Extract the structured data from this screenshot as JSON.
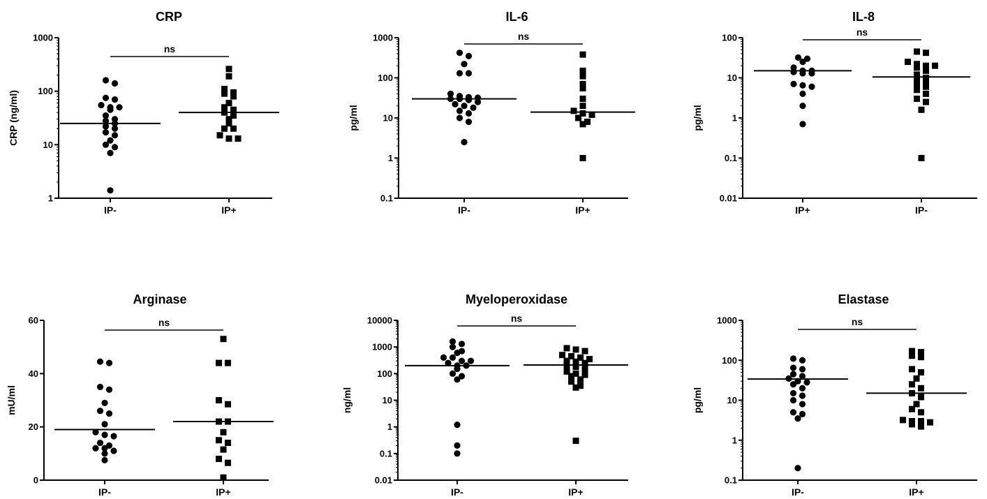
{
  "chart_data": [
    {
      "type": "scatter",
      "title": "CRP",
      "ylabel": "CRP (ng/ml)",
      "yscale": "log",
      "ylim": [
        1,
        1000
      ],
      "yticks": [
        1,
        10,
        100,
        1000
      ],
      "ytick_labels": [
        "1",
        "10",
        "100",
        "1000"
      ],
      "categories": [
        "IP-",
        "IP+"
      ],
      "significance": "ns",
      "series": [
        {
          "marker": "circle",
          "median": 25,
          "values": [
            160,
            140,
            75,
            70,
            55,
            50,
            50,
            45,
            35,
            30,
            28,
            25,
            22,
            20,
            17,
            15,
            12,
            10,
            9,
            7,
            1.4
          ]
        },
        {
          "marker": "square",
          "median": 40,
          "values": [
            260,
            190,
            110,
            95,
            90,
            80,
            60,
            50,
            45,
            40,
            35,
            30,
            25,
            20,
            20,
            15,
            13,
            13
          ]
        }
      ]
    },
    {
      "type": "scatter",
      "title": "IL-6",
      "ylabel": "pg/ml",
      "yscale": "log",
      "ylim": [
        0.1,
        1000
      ],
      "yticks": [
        0.1,
        1,
        10,
        100,
        1000
      ],
      "ytick_labels": [
        "0.1",
        "1",
        "10",
        "100",
        "1000"
      ],
      "categories": [
        "IP-",
        "IP+"
      ],
      "significance": "ns",
      "series": [
        {
          "marker": "circle",
          "median": 30,
          "values": [
            420,
            350,
            220,
            130,
            130,
            40,
            35,
            33,
            32,
            30,
            30,
            28,
            25,
            22,
            20,
            18,
            15,
            13,
            10,
            8,
            2.5
          ]
        },
        {
          "marker": "square",
          "median": 14,
          "values": [
            380,
            150,
            110,
            70,
            55,
            30,
            20,
            15,
            13,
            12,
            10,
            8,
            7,
            1
          ]
        }
      ]
    },
    {
      "type": "scatter",
      "title": "IL-8",
      "ylabel": "pg/ml",
      "yscale": "log",
      "ylim": [
        0.01,
        100
      ],
      "yticks": [
        0.01,
        0.1,
        1,
        10,
        100
      ],
      "ytick_labels": [
        "0.01",
        "0.1",
        "1",
        "10",
        "100"
      ],
      "categories": [
        "IP+",
        "IP-"
      ],
      "significance": "ns",
      "series": [
        {
          "marker": "circle",
          "median": 15,
          "values": [
            32,
            30,
            25,
            18,
            15,
            15,
            14,
            13,
            13,
            7,
            6.5,
            6,
            4,
            2,
            0.7
          ]
        },
        {
          "marker": "square",
          "median": 10.5,
          "values": [
            45,
            42,
            25,
            22,
            20,
            20,
            18,
            15,
            12,
            10,
            9,
            8,
            7,
            6,
            5,
            4,
            3,
            2.5,
            1.6,
            0.1
          ]
        }
      ]
    },
    {
      "type": "scatter",
      "title": "Arginase",
      "ylabel": "mU/ml",
      "yscale": "linear",
      "ylim": [
        0,
        60
      ],
      "yticks": [
        0,
        20,
        40,
        60
      ],
      "ytick_labels": [
        "0",
        "20",
        "40",
        "60"
      ],
      "categories": [
        "IP-",
        "IP+"
      ],
      "significance": "ns",
      "series": [
        {
          "marker": "circle",
          "median": 19,
          "values": [
            44.5,
            44,
            35,
            34,
            29,
            26,
            25,
            21,
            18,
            17,
            16.5,
            14,
            13,
            12,
            12,
            11,
            10,
            7.5
          ]
        },
        {
          "marker": "square",
          "median": 22,
          "values": [
            53,
            44,
            44,
            30,
            28.5,
            22,
            22,
            18,
            15,
            14,
            11.5,
            8,
            6.5,
            1
          ]
        }
      ]
    },
    {
      "type": "scatter",
      "title": "Myeloperoxidase",
      "ylabel": "ng/ml",
      "yscale": "log",
      "ylim": [
        0.01,
        10000
      ],
      "yticks": [
        0.01,
        0.1,
        1,
        10,
        100,
        1000,
        10000
      ],
      "ytick_labels": [
        "0.01",
        "0.1",
        "1",
        "10",
        "100",
        "1000",
        "10000"
      ],
      "categories": [
        "IP-",
        "IP+"
      ],
      "significance": "ns",
      "series": [
        {
          "marker": "circle",
          "median": 200,
          "values": [
            1600,
            1300,
            1000,
            700,
            600,
            400,
            400,
            300,
            300,
            250,
            200,
            200,
            150,
            100,
            80,
            60,
            1.2,
            0.2,
            0.1
          ]
        },
        {
          "marker": "square",
          "median": 210,
          "values": [
            900,
            800,
            700,
            500,
            450,
            400,
            350,
            300,
            280,
            250,
            200,
            180,
            150,
            120,
            100,
            90,
            80,
            60,
            50,
            35,
            30,
            0.3
          ]
        }
      ]
    },
    {
      "type": "scatter",
      "title": "Elastase",
      "ylabel": "pg/ml",
      "yscale": "log",
      "ylim": [
        0.1,
        1000
      ],
      "yticks": [
        0.1,
        1,
        10,
        100,
        1000
      ],
      "ytick_labels": [
        "0.1",
        "1",
        "10",
        "100",
        "1000"
      ],
      "categories": [
        "IP-",
        "IP+"
      ],
      "significance": "ns",
      "series": [
        {
          "marker": "circle",
          "median": 34,
          "values": [
            110,
            100,
            65,
            60,
            45,
            40,
            35,
            30,
            28,
            25,
            20,
            15,
            13,
            10,
            8,
            5,
            4.5,
            3.5,
            0.2
          ]
        },
        {
          "marker": "square",
          "median": 15,
          "values": [
            170,
            160,
            130,
            120,
            60,
            50,
            35,
            25,
            20,
            15,
            12,
            8,
            6,
            5,
            3.2,
            3,
            3,
            2.8,
            2.5,
            2.2
          ]
        }
      ]
    }
  ]
}
